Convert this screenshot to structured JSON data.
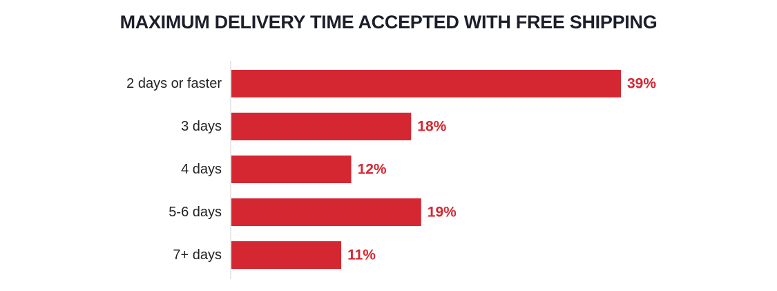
{
  "chart_data": {
    "type": "bar",
    "orientation": "horizontal",
    "title": "MAXIMUM DELIVERY TIME ACCEPTED WITH FREE SHIPPING",
    "categories": [
      "2 days or faster",
      "3 days",
      "4 days",
      "5-6 days",
      "7+ days"
    ],
    "values": [
      39,
      18,
      12,
      19,
      11
    ],
    "value_labels": [
      "39%",
      "18%",
      "12%",
      "19%",
      "11%"
    ],
    "unit": "%",
    "xlim": [
      0,
      39
    ],
    "grid": false,
    "legend": "none",
    "colors": {
      "bar": "#d52731",
      "value_label": "#d52731",
      "category_label": "#222222",
      "title": "#1c1f2a",
      "axis": "#d0d0d0"
    }
  }
}
